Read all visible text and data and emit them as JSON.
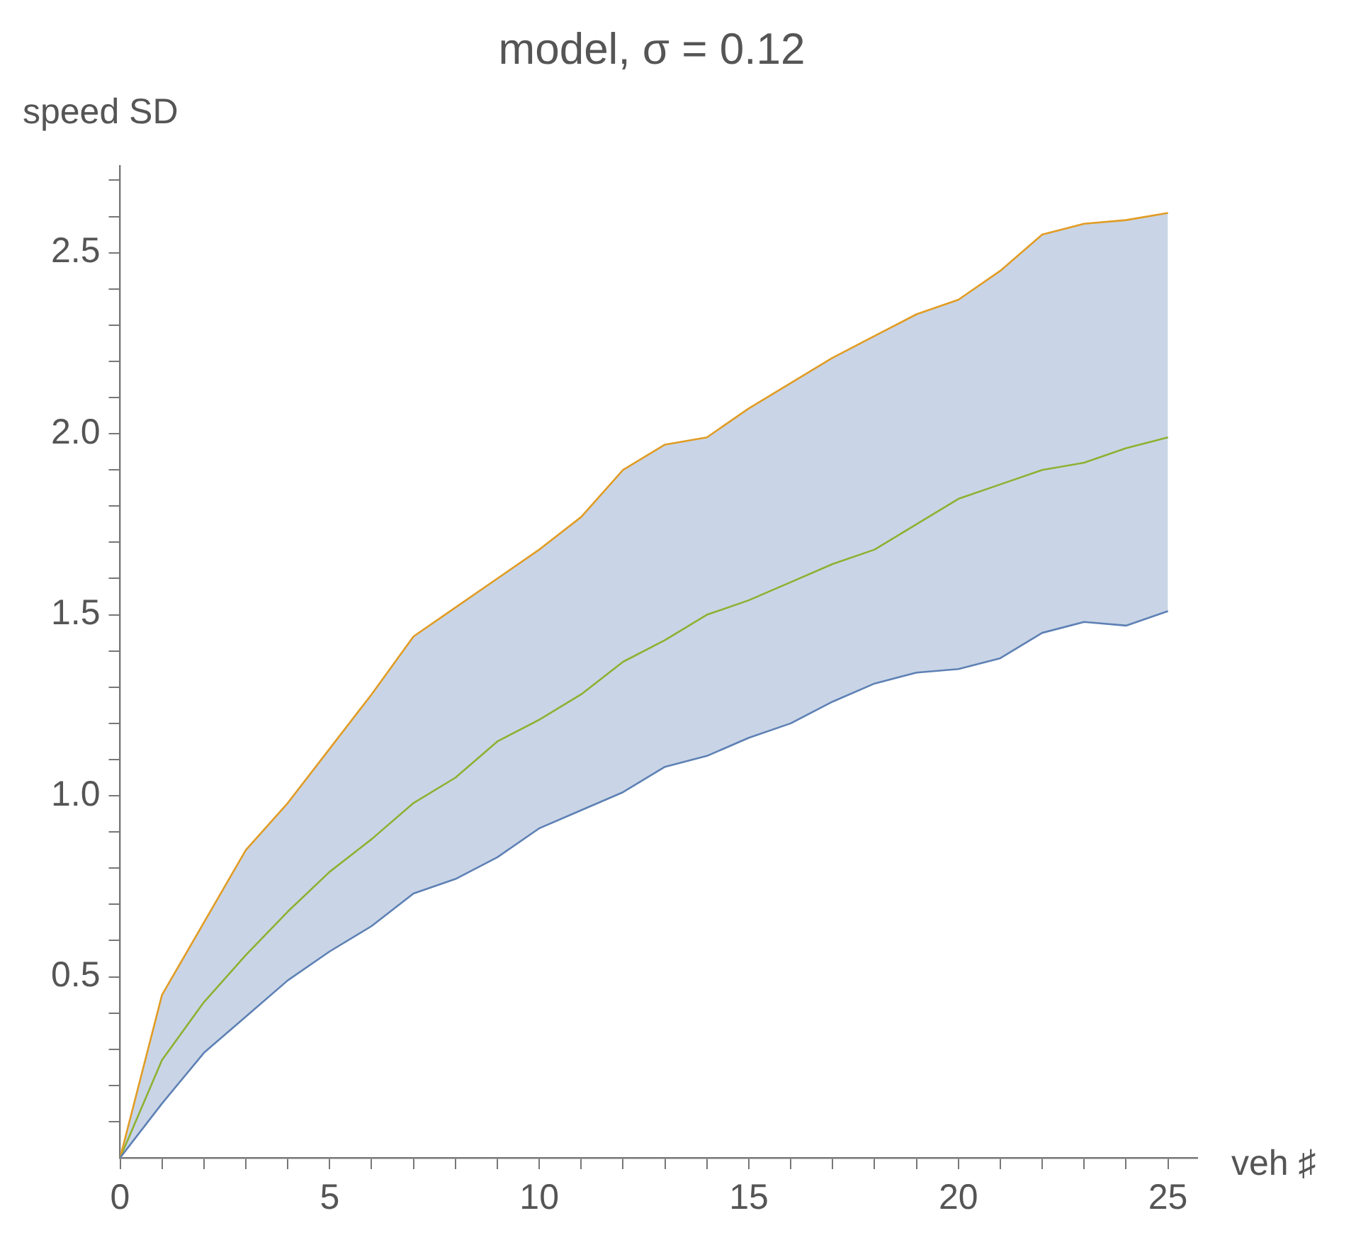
{
  "chart_data": {
    "type": "line",
    "title": "model, σ = 0.12",
    "xlabel": "veh ♯",
    "ylabel": "speed SD",
    "x": [
      0,
      1,
      2,
      3,
      4,
      5,
      6,
      7,
      8,
      9,
      10,
      11,
      12,
      13,
      14,
      15,
      16,
      17,
      18,
      19,
      20,
      21,
      22,
      23,
      24,
      25
    ],
    "series": [
      {
        "color": "#5e81b5",
        "values": [
          0,
          0.15,
          0.29,
          0.39,
          0.49,
          0.57,
          0.64,
          0.73,
          0.77,
          0.83,
          0.91,
          0.96,
          1.01,
          1.08,
          1.11,
          1.16,
          1.2,
          1.26,
          1.31,
          1.34,
          1.35,
          1.38,
          1.45,
          1.48,
          1.47,
          1.51
        ]
      },
      {
        "color": "#e19c24",
        "values": [
          0,
          0.45,
          0.65,
          0.85,
          0.98,
          1.13,
          1.28,
          1.44,
          1.52,
          1.6,
          1.68,
          1.77,
          1.9,
          1.97,
          1.99,
          2.07,
          2.14,
          2.21,
          2.27,
          2.33,
          2.37,
          2.45,
          2.55,
          2.58,
          2.59,
          2.61
        ]
      },
      {
        "color": "#8fb032",
        "values": [
          0,
          0.27,
          0.43,
          0.56,
          0.68,
          0.79,
          0.88,
          0.98,
          1.05,
          1.15,
          1.21,
          1.28,
          1.37,
          1.43,
          1.5,
          1.54,
          1.59,
          1.64,
          1.68,
          1.75,
          1.82,
          1.86,
          1.9,
          1.92,
          1.96,
          1.99
        ],
        "lower": [
          0,
          0.15,
          0.29,
          0.39,
          0.49,
          0.57,
          0.64,
          0.73,
          0.77,
          0.83,
          0.91,
          0.96,
          1.01,
          1.08,
          1.11,
          1.16,
          1.2,
          1.26,
          1.31,
          1.34,
          1.35,
          1.38,
          1.45,
          1.48,
          1.47,
          1.51
        ],
        "upper": [
          0,
          0.45,
          0.65,
          0.85,
          0.98,
          1.13,
          1.28,
          1.44,
          1.52,
          1.6,
          1.68,
          1.77,
          1.9,
          1.97,
          1.99,
          2.07,
          2.14,
          2.21,
          2.27,
          2.33,
          2.37,
          2.45,
          2.55,
          2.58,
          2.59,
          2.61
        ]
      }
    ],
    "xlim": [
      0,
      25.7
    ],
    "xticks": [
      0,
      {
        "value": 1,
        "label": null
      },
      {
        "value": 2,
        "label": null
      },
      {
        "value": 3,
        "label": null
      },
      {
        "value": 4,
        "label": null
      },
      5,
      {
        "value": 6,
        "label": null
      },
      {
        "value": 7,
        "label": null
      },
      {
        "value": 8,
        "label": null
      },
      {
        "value": 9,
        "label": null
      },
      10,
      {
        "value": 11,
        "label": null
      },
      {
        "value": 12,
        "label": null
      },
      {
        "value": 13,
        "label": null
      },
      {
        "value": 14,
        "label": null
      },
      15,
      {
        "value": 16,
        "label": null
      },
      {
        "value": 17,
        "label": null
      },
      {
        "value": 18,
        "label": null
      },
      {
        "value": 19,
        "label": null
      },
      20,
      {
        "value": 21,
        "label": null
      },
      {
        "value": 22,
        "label": null
      },
      {
        "value": 23,
        "label": null
      },
      {
        "value": 24,
        "label": null
      },
      25
    ],
    "ylim": [
      0,
      2.74
    ],
    "yticks": [
      {
        "value": 0.1,
        "label": null
      },
      {
        "value": 0.2,
        "label": null
      },
      {
        "value": 0.3,
        "label": null
      },
      {
        "value": 0.4,
        "label": null
      },
      {
        "value": 0.5,
        "label": "0.5"
      },
      {
        "value": 0.6,
        "label": null
      },
      {
        "value": 0.7,
        "label": null
      },
      {
        "value": 0.8,
        "label": null
      },
      {
        "value": 0.9,
        "label": null
      },
      {
        "value": 1,
        "label": "1.0"
      },
      {
        "value": 1.1,
        "label": null
      },
      {
        "value": 1.2,
        "label": null
      },
      {
        "value": 1.3,
        "label": null
      },
      {
        "value": 1.4,
        "label": null
      },
      {
        "value": 1.5,
        "label": "1.5"
      },
      {
        "value": 1.6,
        "label": null
      },
      {
        "value": 1.7,
        "label": null
      },
      {
        "value": 1.8,
        "label": null
      },
      {
        "value": 1.9,
        "label": null
      },
      {
        "value": 2,
        "label": "2.0"
      },
      {
        "value": 2.1,
        "label": null
      },
      {
        "value": 2.2,
        "label": null
      },
      {
        "value": 2.3,
        "label": null
      },
      {
        "value": 2.4,
        "label": null
      },
      {
        "value": 2.5,
        "label": "2.5"
      },
      {
        "value": 2.6,
        "label": null
      },
      {
        "value": 2.7,
        "label": null
      }
    ],
    "grid": false,
    "legend": false,
    "marker": "none",
    "line_style": "solid"
  }
}
